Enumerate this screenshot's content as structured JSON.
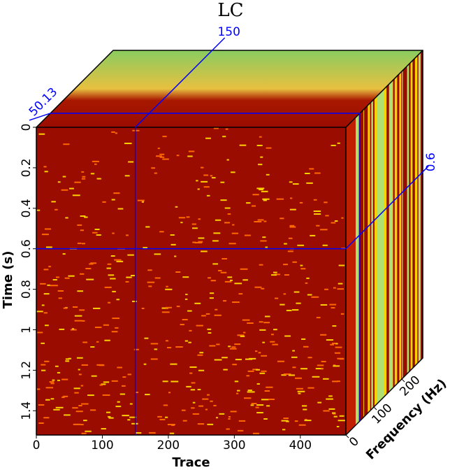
{
  "chart_data": {
    "type": "cube",
    "title": "LC",
    "x_label": "Trace",
    "y_label": "Time (s)",
    "z_label": "Frequency (Hz)",
    "xlim": [
      0,
      469
    ],
    "xticks": [
      0,
      100,
      200,
      300,
      400
    ],
    "ylim": [
      0,
      1.52
    ],
    "yticks": [
      0,
      0.2,
      0.4,
      0.6,
      0.8,
      1,
      1.2,
      1.4
    ],
    "zlim": [
      0,
      275
    ],
    "zticks": [
      0,
      100,
      200
    ],
    "slice": {
      "x": 150,
      "y": 0.6,
      "z": 50.13
    },
    "slice_color": "#0000ff"
  }
}
